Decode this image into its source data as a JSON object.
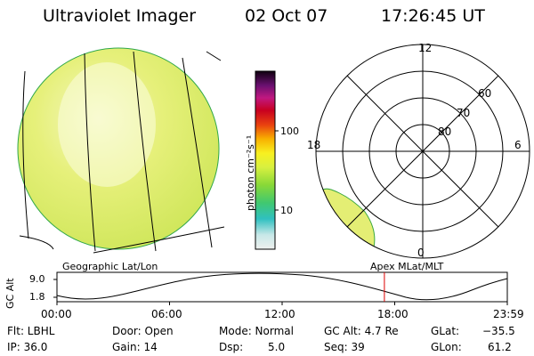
{
  "header": {
    "instrument": "Ultraviolet Imager",
    "date": "02 Oct 07",
    "time": "17:26:45 UT"
  },
  "colorbar": {
    "unit_label": "photon cm⁻²s⁻¹",
    "ticks": [
      "100",
      "10"
    ],
    "scale": "log"
  },
  "polar_plot": {
    "mlt_labels": [
      "12",
      "18",
      "6",
      "0"
    ],
    "lat_labels": [
      "60",
      "70",
      "80"
    ]
  },
  "orbit_panel": {
    "left_caption": "Geographic Lat/Lon",
    "right_caption": "Apex MLat/MLT",
    "y_axis_label": "GC Alt",
    "y_ticks": [
      "9.0",
      "1.8"
    ],
    "x_ticks": [
      "00:00",
      "06:00",
      "12:00",
      "18:00",
      "23:59"
    ],
    "current_time_hours": 17.45,
    "marker_color": "#dd0000"
  },
  "status": {
    "flt": "Flt: LBHL",
    "ip": "IP: 36.0",
    "door": "Door: Open",
    "gain": "Gain: 14",
    "mode": "Mode: Normal",
    "dsp_label": "Dsp:",
    "dsp_value": "5.0",
    "gc_alt": "GC Alt: 4.7 Re",
    "seq": "Seq: 39",
    "glat_label": "GLat:",
    "glat_value": "−35.5",
    "glon_label": "GLon:",
    "glon_value": "61.2"
  }
}
